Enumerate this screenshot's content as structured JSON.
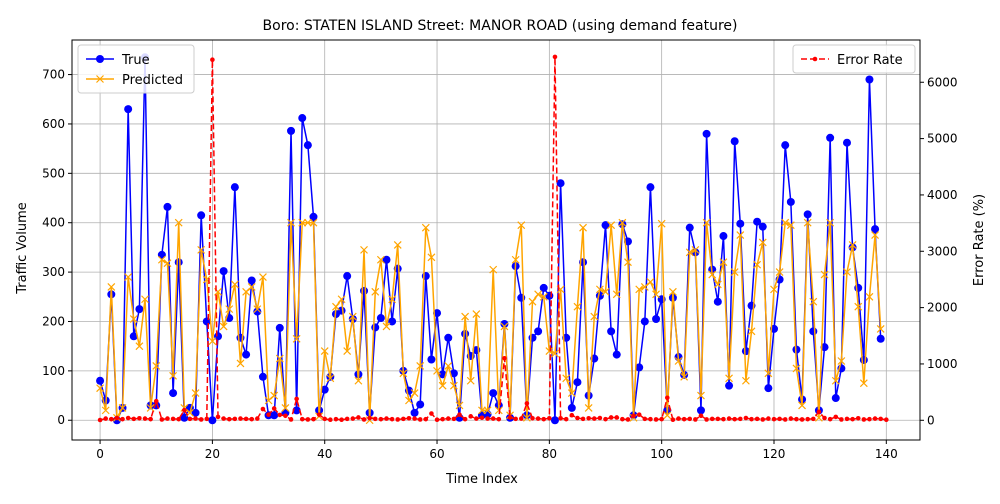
{
  "chart_data": {
    "type": "line",
    "title": "Boro: STATEN ISLAND Street: MANOR ROAD (using demand feature)",
    "xlabel": "Time Index",
    "ylabel_left": "Traffic Volume",
    "ylabel_right": "Error Rate (%)",
    "xlim": [
      -5,
      146
    ],
    "ylim_left": [
      -40,
      770
    ],
    "ylim_right": [
      -350,
      6750
    ],
    "x_ticks": [
      0,
      20,
      40,
      60,
      80,
      100,
      120,
      140
    ],
    "y_ticks_left": [
      0,
      100,
      200,
      300,
      400,
      500,
      600,
      700
    ],
    "y_ticks_right": [
      0,
      1000,
      2000,
      3000,
      4000,
      5000,
      6000
    ],
    "grid": true,
    "legend_left_placement": "upper-left",
    "legend_right_placement": "upper-right",
    "series": [
      {
        "name": "True",
        "axis": "left",
        "color": "#0000ff",
        "marker": "circle",
        "values": [
          80,
          40,
          255,
          0,
          25,
          630,
          170,
          225,
          735,
          30,
          30,
          335,
          432,
          55,
          320,
          5,
          25,
          15,
          415,
          200,
          0,
          170,
          302,
          207,
          472,
          167,
          133,
          283,
          220,
          88,
          10,
          10,
          187,
          15,
          586,
          20,
          612,
          557,
          412,
          20,
          62,
          88,
          215,
          222,
          292,
          205,
          93,
          262,
          15,
          188,
          207,
          325,
          200,
          307,
          100,
          60,
          15,
          32,
          292,
          123,
          217,
          93,
          167,
          95,
          5,
          175,
          130,
          142,
          10,
          12,
          55,
          30,
          195,
          5,
          312,
          248,
          10,
          167,
          180,
          268,
          252,
          0,
          480,
          167,
          25,
          77,
          320,
          50,
          125,
          252,
          395,
          180,
          133,
          397,
          362,
          10,
          107,
          200,
          472,
          205,
          245,
          20,
          248,
          128,
          92,
          390,
          340,
          20,
          580,
          305,
          240,
          373,
          70,
          565,
          398,
          140,
          232,
          402,
          392,
          65,
          185,
          285,
          557,
          442,
          143,
          42,
          417,
          180,
          20,
          148,
          572,
          45,
          105,
          562,
          350,
          268,
          122,
          690,
          387,
          165
        ]
      },
      {
        "name": "Predicted",
        "axis": "left",
        "color": "#ffa500",
        "marker": "x",
        "values": [
          65,
          20,
          270,
          5,
          25,
          290,
          205,
          150,
          245,
          25,
          110,
          325,
          318,
          90,
          400,
          25,
          15,
          55,
          345,
          285,
          160,
          260,
          190,
          225,
          275,
          115,
          260,
          270,
          225,
          290,
          40,
          50,
          125,
          25,
          400,
          165,
          400,
          400,
          400,
          8,
          140,
          85,
          230,
          245,
          140,
          210,
          80,
          345,
          0,
          260,
          325,
          190,
          245,
          355,
          95,
          40,
          55,
          110,
          390,
          330,
          100,
          70,
          110,
          70,
          30,
          210,
          80,
          215,
          20,
          20,
          305,
          20,
          190,
          10,
          325,
          395,
          5,
          240,
          255,
          250,
          140,
          135,
          265,
          85,
          55,
          230,
          390,
          25,
          210,
          265,
          260,
          395,
          255,
          400,
          320,
          5,
          265,
          270,
          280,
          255,
          398,
          10,
          260,
          120,
          88,
          340,
          345,
          50,
          400,
          295,
          275,
          320,
          85,
          300,
          375,
          80,
          180,
          315,
          360,
          95,
          265,
          300,
          400,
          395,
          105,
          30,
          400,
          240,
          5,
          295,
          400,
          80,
          120,
          300,
          355,
          230,
          75,
          250,
          375,
          185
        ]
      },
      {
        "name": "Error Rate",
        "axis": "right",
        "color": "#ff0000",
        "marker": "dot",
        "dashed": true,
        "values": [
          5,
          30,
          20,
          40,
          20,
          40,
          25,
          35,
          30,
          20,
          340,
          15,
          30,
          25,
          20,
          180,
          25,
          30,
          15,
          25,
          6400,
          60,
          30,
          20,
          25,
          30,
          25,
          20,
          30,
          200,
          100,
          210,
          95,
          80,
          15,
          380,
          20,
          15,
          20,
          100,
          25,
          10,
          20,
          10,
          25,
          30,
          50,
          15,
          40,
          25,
          20,
          30,
          20,
          15,
          25,
          35,
          30,
          15,
          20,
          120,
          10,
          20,
          30,
          25,
          100,
          20,
          70,
          30,
          45,
          30,
          30,
          20,
          1100,
          50,
          25,
          30,
          300,
          35,
          30,
          20,
          35,
          6450,
          35,
          20,
          90,
          40,
          25,
          35,
          30,
          40,
          20,
          50,
          50,
          20,
          15,
          80,
          100,
          25,
          20,
          15,
          20,
          400,
          10,
          30,
          20,
          25,
          15,
          80,
          15,
          25,
          25,
          20,
          30,
          20,
          25,
          40,
          20,
          25,
          15,
          30,
          20,
          25,
          15,
          30,
          20,
          15,
          20,
          25,
          150,
          40,
          20,
          60,
          15,
          25,
          20,
          35,
          15,
          20,
          30,
          25,
          10
        ]
      }
    ]
  }
}
